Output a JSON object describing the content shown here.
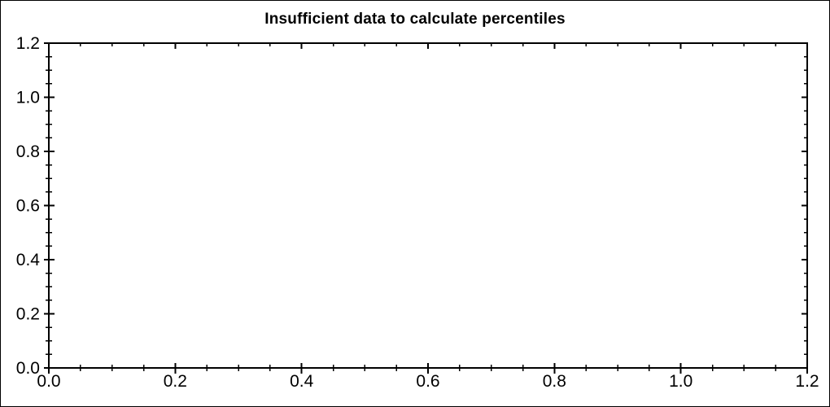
{
  "window": {
    "background": "#ffffff",
    "frame_border_color": "#000000"
  },
  "chart_data": {
    "type": "scatter",
    "title": "Insufficient data to calculate percentiles",
    "xlabel": "",
    "ylabel": "",
    "series": [],
    "data_points": [],
    "xlim": [
      0.0,
      1.2
    ],
    "ylim": [
      0.0,
      1.2
    ],
    "x_tick_labels": [
      "0.0",
      "0.2",
      "0.4",
      "0.6",
      "0.8",
      "1.0",
      "1.2"
    ],
    "y_tick_labels": [
      "0.0",
      "0.2",
      "0.4",
      "0.6",
      "0.8",
      "1.0",
      "1.2"
    ],
    "x_major_tick_step": 0.2,
    "y_major_tick_step": 0.2,
    "x_minor_tick_step": 0.05,
    "y_minor_tick_step": 0.05,
    "grid": false,
    "legend": false,
    "axis_color": "#000000",
    "text_color": "#000000",
    "plot_background": "#ffffff"
  }
}
